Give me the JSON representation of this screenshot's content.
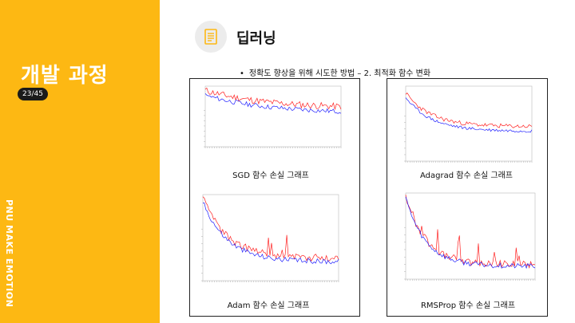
{
  "sidebar": {
    "title": "개발 과정",
    "page_counter": "23/45",
    "vertical_text": "PNU MAKE EMOTION"
  },
  "header": {
    "icon": "document-list-icon",
    "title": "딥러닝"
  },
  "subtitle": {
    "bullet": "•",
    "text": "정확도 향상을 위해 시도한 방법 – 2. 최적화 함수 변화"
  },
  "colors": {
    "accent": "#FDB813",
    "series_red": "#ff2020",
    "series_blue": "#2020ff"
  },
  "charts": [
    {
      "id": "sgd",
      "caption": "SGD 함수 손실 그래프"
    },
    {
      "id": "adagrad",
      "caption": "Adagrad 함수 손실 그래프"
    },
    {
      "id": "adam",
      "caption": "Adam 함수 손실 그래프"
    },
    {
      "id": "rmsprop",
      "caption": "RMSProp 함수 손실 그래프"
    }
  ]
}
